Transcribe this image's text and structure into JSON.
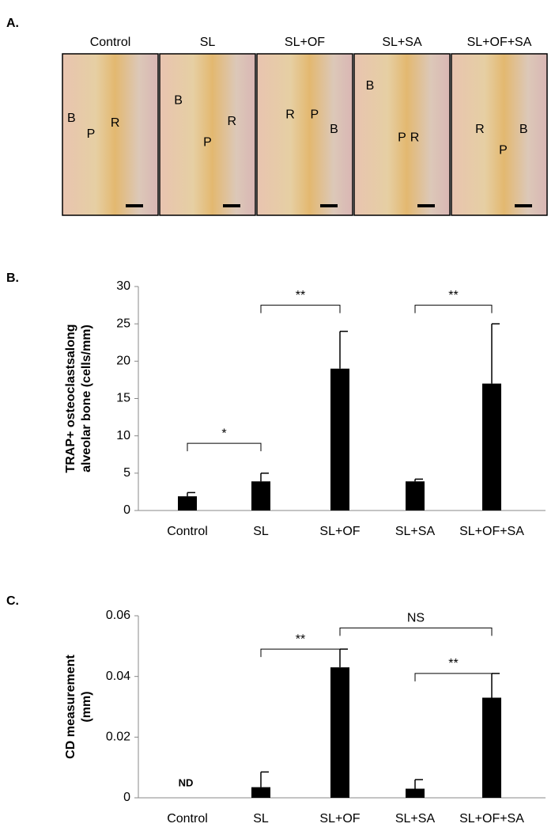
{
  "panel_labels": [
    "A.",
    "B.",
    "C."
  ],
  "histology": {
    "columns": [
      {
        "title": "Control",
        "labels": [
          "B",
          "P",
          "R"
        ]
      },
      {
        "title": "SL",
        "labels": [
          "B",
          "P",
          "R"
        ]
      },
      {
        "title": "SL+OF",
        "labels": [
          "R",
          "P",
          "B"
        ]
      },
      {
        "title": "SL+SA",
        "labels": [
          "B",
          "P",
          "R"
        ]
      },
      {
        "title": "SL+OF+SA",
        "labels": [
          "R",
          "P",
          "B"
        ]
      }
    ]
  },
  "chart_data": [
    {
      "type": "bar",
      "ylabel": [
        "TRAP+ osteoclastsalong",
        "alveolar bone (cells/mm)"
      ],
      "categories": [
        "Control",
        "SL",
        "SL+OF",
        "SL+SA",
        "SL+OF+SA"
      ],
      "values": [
        1.9,
        3.9,
        19,
        3.9,
        17
      ],
      "errors": [
        0.5,
        1.1,
        5,
        0.3,
        8
      ],
      "color": "#000000",
      "ylim": [
        0,
        30
      ],
      "yticks": [
        0,
        5,
        10,
        15,
        20,
        25,
        30
      ],
      "annotations": [
        {
          "text": "*",
          "from": 0,
          "to": 1,
          "y": 9
        },
        {
          "text": "**",
          "from": 1,
          "to": 2,
          "y": 27.5
        },
        {
          "text": "**",
          "from": 3,
          "to": 4,
          "y": 27.5
        }
      ]
    },
    {
      "type": "bar",
      "ylabel": [
        "CD measurement",
        "(mm)"
      ],
      "categories": [
        "Control",
        "SL",
        "SL+OF",
        "SL+SA",
        "SL+OF+SA"
      ],
      "values": [
        null,
        0.0035,
        0.043,
        0.003,
        0.033
      ],
      "value_labels": [
        "ND",
        null,
        null,
        null,
        null
      ],
      "errors": [
        null,
        0.005,
        0.006,
        0.003,
        0.008
      ],
      "color": "#000000",
      "ylim": [
        0,
        0.06
      ],
      "yticks": [
        0,
        0.02,
        0.04,
        0.06
      ],
      "annotations": [
        {
          "text": "**",
          "from": 1,
          "to": 2,
          "y": 0.049
        },
        {
          "text": "NS",
          "from": 2,
          "to": 4,
          "y": 0.056
        },
        {
          "text": "**",
          "from": 3,
          "to": 4,
          "y": 0.041
        }
      ]
    }
  ]
}
